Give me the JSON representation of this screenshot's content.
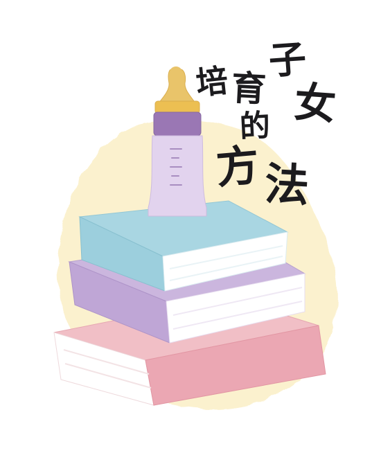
{
  "title": {
    "chars": [
      "培",
      "育",
      "子",
      "女",
      "的",
      "方",
      "法"
    ]
  },
  "illustration": {
    "items": [
      "baby-bottle",
      "book-blue",
      "book-purple",
      "book-pink"
    ]
  },
  "colors": {
    "background": "#ffffff",
    "watercolor_blob": "#fbefc6",
    "bottle_nipple": "#e9c46a",
    "bottle_cap": "#9a77b4",
    "bottle_body": "#e2d3ee",
    "book_blue": "#a9d6e2",
    "book_purple": "#cbb6de",
    "book_pink": "#f1bfc6",
    "pages": "#ffffff",
    "text": "#1c1b1e"
  }
}
